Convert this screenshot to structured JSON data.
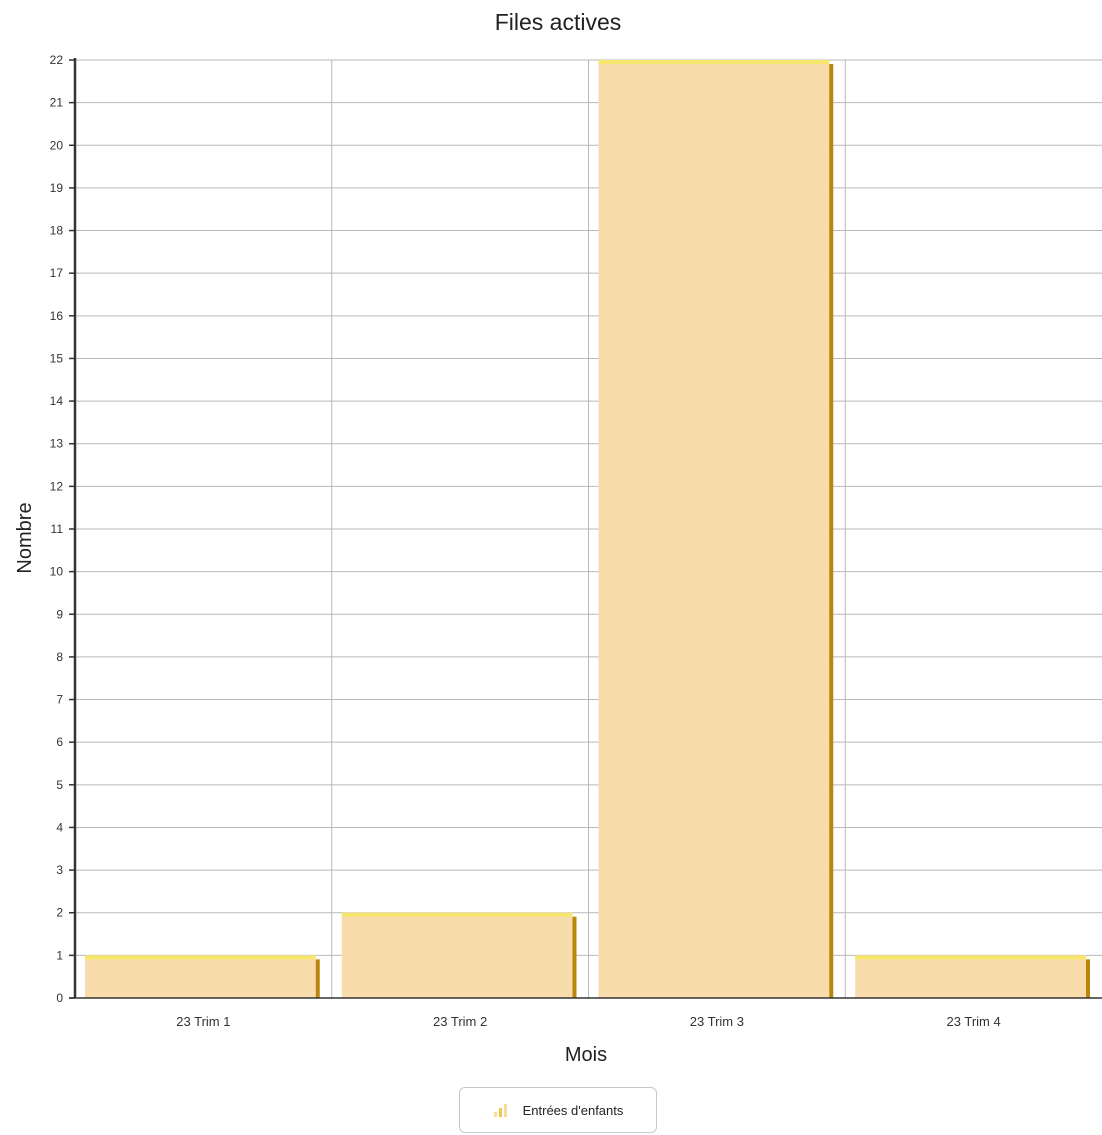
{
  "chart_data": {
    "type": "bar",
    "title": "Files actives",
    "xlabel": "Mois",
    "ylabel": "Nombre",
    "categories": [
      "23 Trim 1",
      "23 Trim 2",
      "23 Trim 3",
      "23 Trim 4"
    ],
    "series": [
      {
        "name": "Entrées d'enfants",
        "values": [
          1,
          2,
          22,
          1
        ]
      }
    ],
    "ylim": [
      0,
      22
    ],
    "yticks": [
      0,
      1,
      2,
      3,
      4,
      5,
      6,
      7,
      8,
      9,
      10,
      11,
      12,
      13,
      14,
      15,
      16,
      17,
      18,
      19,
      20,
      21,
      22
    ],
    "grid": true,
    "legend_position": "bottom-center",
    "colors": {
      "bar_fill": "#f9dcac",
      "bar_top": "#f7e66c",
      "bar_side": "#b8860b",
      "grid": "#b9b9b9",
      "axis": "#333333",
      "legend_icon": "#f2c84b"
    },
    "legend_icon": "bar-chart-icon"
  }
}
